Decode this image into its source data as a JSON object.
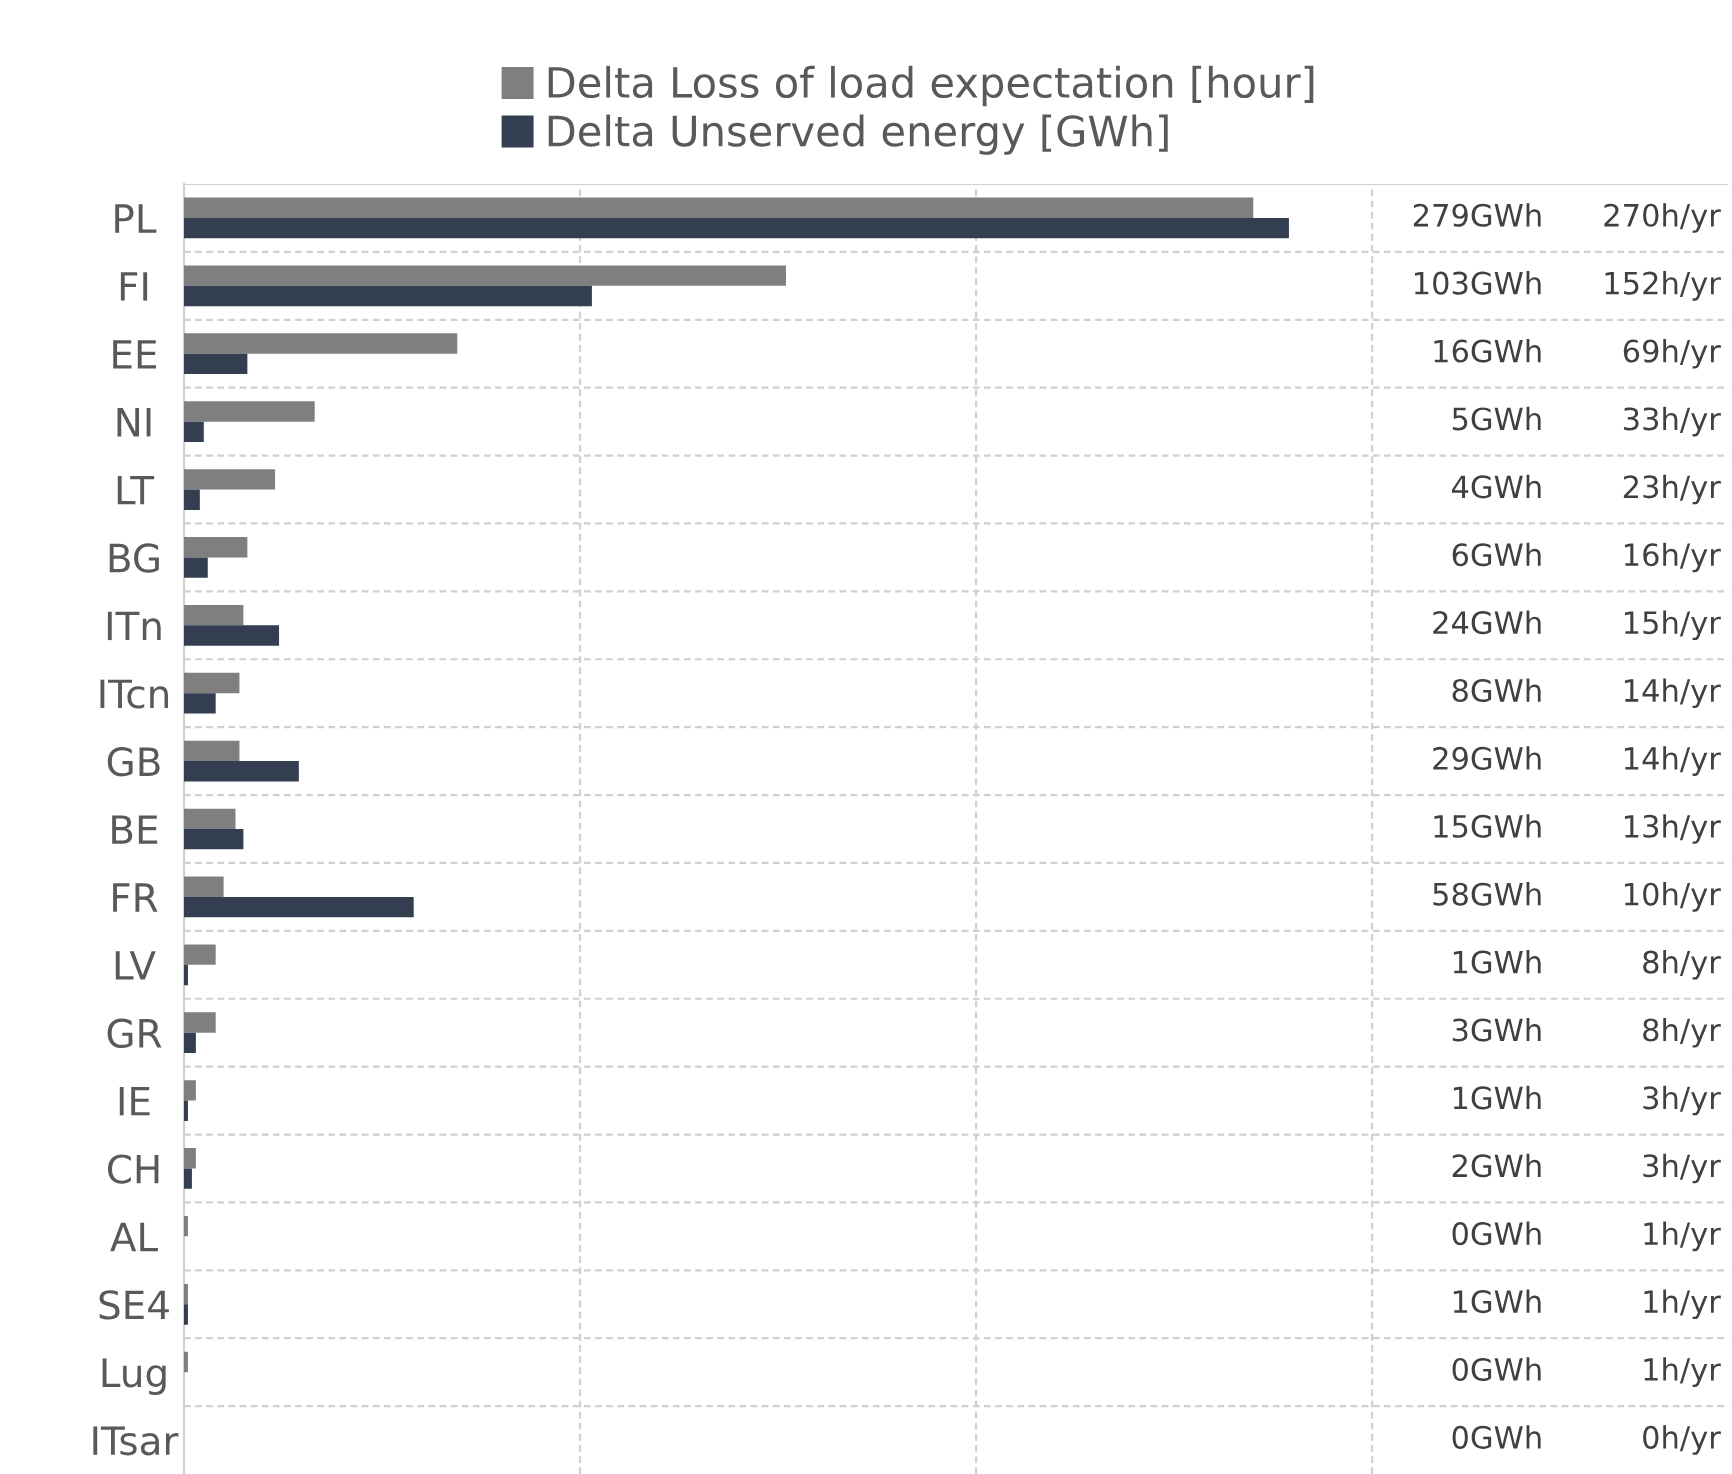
{
  "chart_data": {
    "type": "bar",
    "orientation": "horizontal",
    "categories": [
      "PL",
      "FI",
      "EE",
      "NI",
      "LT",
      "BG",
      "ITn",
      "ITcn",
      "GB",
      "BE",
      "FR",
      "LV",
      "GR",
      "IE",
      "CH",
      "AL",
      "SE4",
      "Lug",
      "ITsar"
    ],
    "series": [
      {
        "name": "Delta Loss of load expectation [hour]",
        "color": "#7f7f7f",
        "values": [
          270,
          152,
          69,
          33,
          23,
          16,
          15,
          14,
          14,
          13,
          10,
          8,
          8,
          3,
          3,
          1,
          1,
          1,
          0
        ],
        "value_labels": [
          "270h/yr",
          "152h/yr",
          "69h/yr",
          "33h/yr",
          "23h/yr",
          "16h/yr",
          "15h/yr",
          "14h/yr",
          "14h/yr",
          "13h/yr",
          "10h/yr",
          "8h/yr",
          "8h/yr",
          "3h/yr",
          "3h/yr",
          "1h/yr",
          "1h/yr",
          "1h/yr",
          "0h/yr"
        ]
      },
      {
        "name": "Delta Unserved energy [GWh]",
        "color": "#333f50",
        "values": [
          279,
          103,
          16,
          5,
          4,
          6,
          24,
          8,
          29,
          15,
          58,
          1,
          3,
          1,
          2,
          0,
          1,
          0,
          0
        ],
        "value_labels": [
          "279GWh",
          "103GWh",
          "16GWh",
          "5GWh",
          "4GWh",
          "6GWh",
          "24GWh",
          "8GWh",
          "29GWh",
          "15GWh",
          "58GWh",
          "1GWh",
          "3GWh",
          "1GWh",
          "2GWh",
          "0GWh",
          "1GWh",
          "0GWh",
          "0GWh"
        ]
      }
    ],
    "xlim": [
      0,
      390
    ],
    "xticks": [
      {
        "value": 100,
        "label": null
      },
      {
        "value": 200,
        "label": null
      },
      {
        "value": 300,
        "label": null
      }
    ],
    "tick_labels": "y",
    "grid": true,
    "legend": "top"
  }
}
